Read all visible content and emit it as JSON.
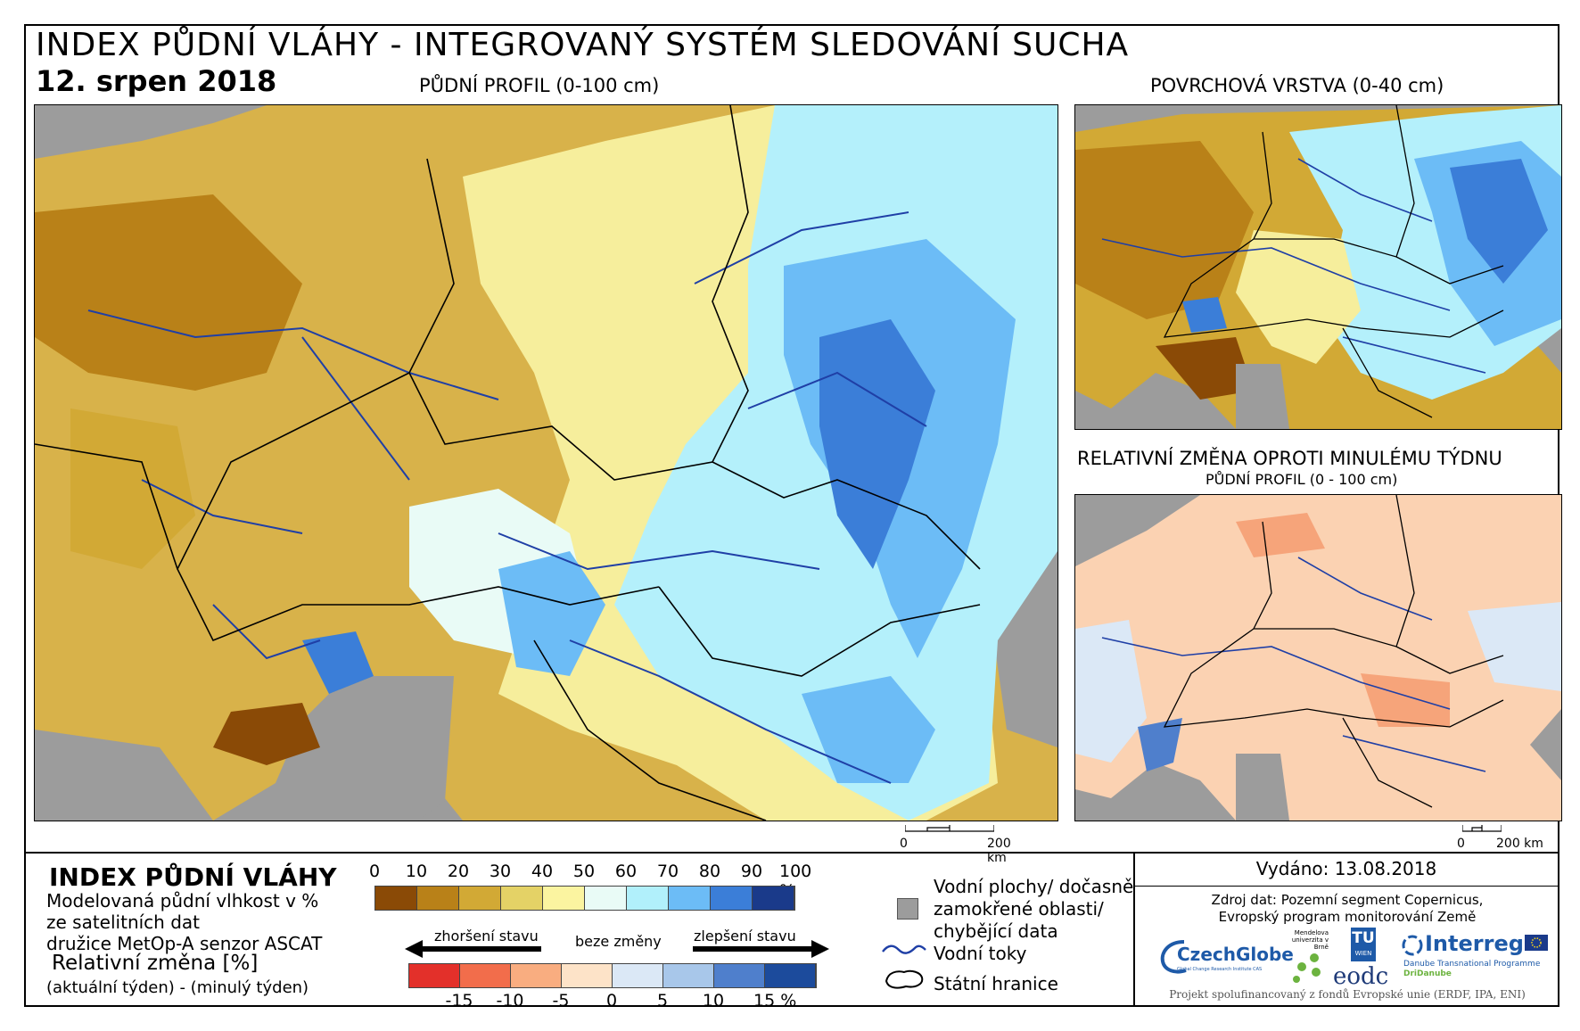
{
  "header": {
    "title": "INDEX PŮDNÍ VLÁHY - INTEGROVANÝ SYSTÉM SLEDOVÁNÍ SUCHA",
    "date": "12. srpen 2018"
  },
  "maps": {
    "main_label": "PŮDNÍ PROFIL (0-100 cm)",
    "surface_label": "POVRCHOVÁ VRSTVA (0-40 cm)",
    "change_label": "RELATIVNÍ ZMĚNA OPROTI MINULÉMU TÝDNU",
    "change_sublabel": "PŮDNÍ PROFIL (0 - 100 cm)",
    "scalebar_main": {
      "start": "0",
      "end": "200 km"
    },
    "scalebar_side": {
      "start": "0",
      "end": "200 km"
    }
  },
  "legend": {
    "title": "INDEX PŮDNÍ VLÁHY",
    "lines": [
      "Modelovaná půdní vlhkost v %",
      "ze satelitních dat",
      "družice MetOp-A senzor ASCAT"
    ],
    "rel_title": "Relativní změna [%]",
    "rel_sub": "(aktuální týden) - (minulý týden)",
    "moisture_ticks": [
      "0",
      "10",
      "20",
      "30",
      "40",
      "50",
      "60",
      "70",
      "80",
      "90",
      "100 %"
    ],
    "moisture_colors": [
      "#8a4a06",
      "#b98118",
      "#d2a935",
      "#e4d266",
      "#fbf4a0",
      "#e9fbf6",
      "#b1f0fb",
      "#6cbcf6",
      "#3b7ed8",
      "#1a3a8a"
    ],
    "change_ticks": [
      "-15",
      "-10",
      "-5",
      "0",
      "5",
      "10",
      "15 %"
    ],
    "change_colors": [
      "#e3302a",
      "#f26d4b",
      "#f9ad80",
      "#fde3c8",
      "#dbe8f6",
      "#a8c7ea",
      "#4f7fcc",
      "#1c4b9c"
    ],
    "worse_label": "zhoršení stavu",
    "nochange_label": "beze změny",
    "better_label": "zlepšení stavu",
    "symbols": {
      "water_label_1": "Vodní plochy/ dočasně",
      "water_label_2": "zamokřené oblasti/",
      "water_label_3": "chybějící data",
      "rivers_label": "Vodní toky",
      "borders_label": "Státní hranice"
    }
  },
  "footer": {
    "issued": "Vydáno: 13.08.2018",
    "source_1": "Zdroj dat: Pozemní segment Copernicus,",
    "source_2": "Evropský program monitorování Země",
    "funded": "Projekt spolufinancovaný z fondů Evropské unie (ERDF, IPA, ENI)",
    "logos": {
      "czechglobe": "CzechGlobe",
      "czechglobe_sub": "Global Change Research Institute CAS",
      "mendel": "Mendelova univerzita v Brně",
      "tu": "TU",
      "tu_sub": "WIEN",
      "eodc": "eodc",
      "interreg": "Interreg",
      "interreg_sub": "Danube Transnational Programme",
      "dridanube": "DriDanube"
    }
  }
}
